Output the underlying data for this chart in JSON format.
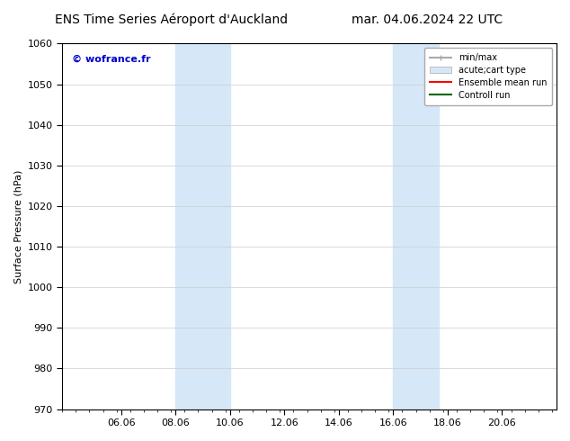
{
  "title_left": "ENS Time Series Aéroport d'Auckland",
  "title_right": "mar. 04.06.2024 22 UTC",
  "ylabel": "Surface Pressure (hPa)",
  "ylim": [
    970,
    1060
  ],
  "yticks": [
    970,
    980,
    990,
    1000,
    1010,
    1020,
    1030,
    1040,
    1050,
    1060
  ],
  "x_tick_labels": [
    "06.06",
    "08.06",
    "10.06",
    "12.06",
    "14.06",
    "16.06",
    "18.06",
    "20.06"
  ],
  "band_color": "#d6e8f7",
  "watermark_text": "© wofrance.fr",
  "watermark_color": "#0000cc",
  "bg_color": "#ffffff",
  "grid_color": "#cccccc",
  "font_size": 8,
  "title_font_size": 10
}
